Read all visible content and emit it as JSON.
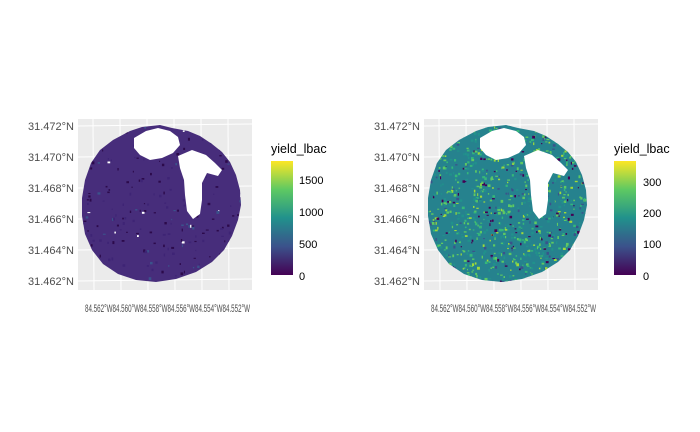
{
  "chart_data": [
    {
      "type": "heatmap",
      "title": "",
      "xlabel": "",
      "ylabel": "",
      "y_ticks": [
        "31.472°N",
        "31.470°N",
        "31.468°N",
        "31.466°N",
        "31.464°N",
        "31.462°N"
      ],
      "x_tick_text": "84.562°W84.560°W84.558°W84.556°W84.554°W84.552°W",
      "legend": {
        "title": "yield_lbac",
        "ticks": [
          "1500",
          "1000",
          "500",
          "0"
        ],
        "tick_values": [
          1500,
          1000,
          500,
          0
        ],
        "range": [
          0,
          1700
        ]
      },
      "palette": "viridis",
      "grid": true,
      "legend_position": "right"
    },
    {
      "type": "heatmap",
      "title": "",
      "xlabel": "",
      "ylabel": "",
      "y_ticks": [
        "31.472°N",
        "31.470°N",
        "31.468°N",
        "31.466°N",
        "31.464°N",
        "31.462°N"
      ],
      "x_tick_text": "84.562°W84.560°W84.558°W84.556°W84.554°W84.552°W",
      "legend": {
        "title": "yield_lbac",
        "ticks": [
          "300",
          "200",
          "100",
          "0"
        ],
        "tick_values": [
          300,
          200,
          100,
          0
        ],
        "range": [
          0,
          370
        ]
      },
      "palette": "viridis",
      "grid": true,
      "legend_position": "right"
    }
  ],
  "colors": {
    "panel_background": "#ebebeb",
    "grid_line": "#ffffff",
    "viridis": [
      "#fde725",
      "#5ec962",
      "#21918c",
      "#3b528b",
      "#440154"
    ],
    "field_low": "#472d7b",
    "field_hole": "#ffffff"
  }
}
